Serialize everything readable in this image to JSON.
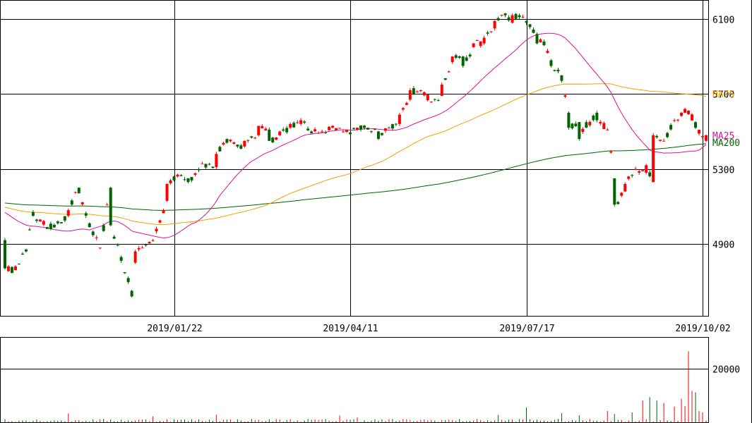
{
  "chart_data": {
    "type": "candlestick",
    "price_axis": {
      "ticks": [
        {
          "value": 6100,
          "label": "6100"
        },
        {
          "value": 5700,
          "label": "5700"
        },
        {
          "value": 5300,
          "label": "5300"
        },
        {
          "value": 4900,
          "label": "4900"
        }
      ],
      "range": [
        4485,
        6175
      ]
    },
    "volume_axis": {
      "ticks": [
        {
          "value": 20000,
          "label": "20000"
        }
      ],
      "range": [
        0,
        27000
      ]
    },
    "x_labels": [
      {
        "index": 48,
        "label": "2019/01/22"
      },
      {
        "index": 98,
        "label": "2019/04/11"
      },
      {
        "index": 148,
        "label": "2019/07/17"
      },
      {
        "index": 198,
        "label": "2019/10/02"
      }
    ],
    "legend": [
      {
        "name": "MA25",
        "color": "#e0109a",
        "value": 5460
      },
      {
        "name": "MA75",
        "color": "#f5a000",
        "value": 5690
      },
      {
        "name": "MA200",
        "color": "#006400",
        "value": 5435
      }
    ],
    "colors": {
      "up": "#ff0000",
      "down": "#006400",
      "ma25": "#e0109a",
      "ma75": "#f5a000",
      "ma200": "#006400",
      "grid": "#000000"
    },
    "anchors": [
      [
        0,
        4920,
        4770
      ],
      [
        3,
        4760,
        4780
      ],
      [
        6,
        4870,
        4860
      ],
      [
        8,
        5070,
        5050
      ],
      [
        10,
        5020,
        5030
      ],
      [
        12,
        4990,
        4980
      ],
      [
        15,
        5020,
        5010
      ],
      [
        18,
        5050,
        5080
      ],
      [
        21,
        5200,
        5170
      ],
      [
        24,
        5010,
        4990
      ],
      [
        27,
        4880,
        4880
      ],
      [
        30,
        5200,
        5000
      ],
      [
        33,
        4830,
        4810
      ],
      [
        36,
        4650,
        4620
      ],
      [
        37,
        4800,
        4860
      ],
      [
        39,
        4880,
        4880
      ],
      [
        42,
        4920,
        4920
      ],
      [
        46,
        5130,
        5220
      ],
      [
        49,
        5260,
        5270
      ],
      [
        52,
        5250,
        5230
      ],
      [
        56,
        5330,
        5330
      ],
      [
        60,
        5310,
        5380
      ],
      [
        63,
        5460,
        5440
      ],
      [
        66,
        5430,
        5420
      ],
      [
        68,
        5420,
        5450
      ],
      [
        72,
        5480,
        5530
      ],
      [
        75,
        5510,
        5450
      ],
      [
        78,
        5480,
        5500
      ],
      [
        81,
        5520,
        5540
      ],
      [
        84,
        5540,
        5560
      ],
      [
        87,
        5500,
        5490
      ],
      [
        90,
        5500,
        5500
      ],
      [
        93,
        5520,
        5530
      ],
      [
        96,
        5500,
        5500
      ],
      [
        100,
        5510,
        5520
      ],
      [
        103,
        5520,
        5510
      ],
      [
        106,
        5500,
        5460
      ],
      [
        109,
        5520,
        5520
      ],
      [
        112,
        5540,
        5590
      ],
      [
        115,
        5670,
        5720
      ],
      [
        118,
        5720,
        5720
      ],
      [
        121,
        5660,
        5660
      ],
      [
        124,
        5690,
        5750
      ],
      [
        127,
        5870,
        5900
      ],
      [
        130,
        5900,
        5850
      ],
      [
        133,
        5950,
        5970
      ],
      [
        136,
        5970,
        6000
      ],
      [
        139,
        6050,
        6090
      ],
      [
        142,
        6130,
        6120
      ],
      [
        144,
        6080,
        6120
      ],
      [
        146,
        6120,
        6110
      ],
      [
        148,
        6090,
        6080
      ],
      [
        151,
        6020,
        5970
      ],
      [
        153,
        5980,
        5960
      ],
      [
        155,
        5880,
        5850
      ],
      [
        158,
        5800,
        5770
      ],
      [
        160,
        5600,
        5520
      ],
      [
        163,
        5550,
        5460
      ],
      [
        165,
        5550,
        5520
      ],
      [
        168,
        5600,
        5560
      ],
      [
        171,
        5510,
        5510
      ],
      [
        173,
        5250,
        5110
      ],
      [
        176,
        5180,
        5220
      ],
      [
        179,
        5300,
        5300
      ],
      [
        182,
        5280,
        5320
      ],
      [
        184,
        5230,
        5480
      ],
      [
        187,
        5450,
        5450
      ],
      [
        190,
        5560,
        5560
      ],
      [
        193,
        5600,
        5620
      ],
      [
        196,
        5550,
        5520
      ],
      [
        199,
        5450,
        5480
      ]
    ],
    "volume_bursts": [
      [
        0,
        1200
      ],
      [
        18,
        3300
      ],
      [
        42,
        2200
      ],
      [
        60,
        2800
      ],
      [
        95,
        2500
      ],
      [
        100,
        1800
      ],
      [
        140,
        2700
      ],
      [
        148,
        5500
      ],
      [
        158,
        3400
      ],
      [
        163,
        2600
      ],
      [
        171,
        4200
      ],
      [
        173,
        3100
      ],
      [
        178,
        3700
      ],
      [
        181,
        8200
      ],
      [
        183,
        9400
      ],
      [
        185,
        8100
      ],
      [
        187,
        7200
      ],
      [
        190,
        5900
      ],
      [
        192,
        8800
      ],
      [
        193,
        6100
      ],
      [
        194,
        26500
      ],
      [
        195,
        11700
      ],
      [
        196,
        11200
      ],
      [
        197,
        4200
      ],
      [
        198,
        3700
      ]
    ]
  }
}
